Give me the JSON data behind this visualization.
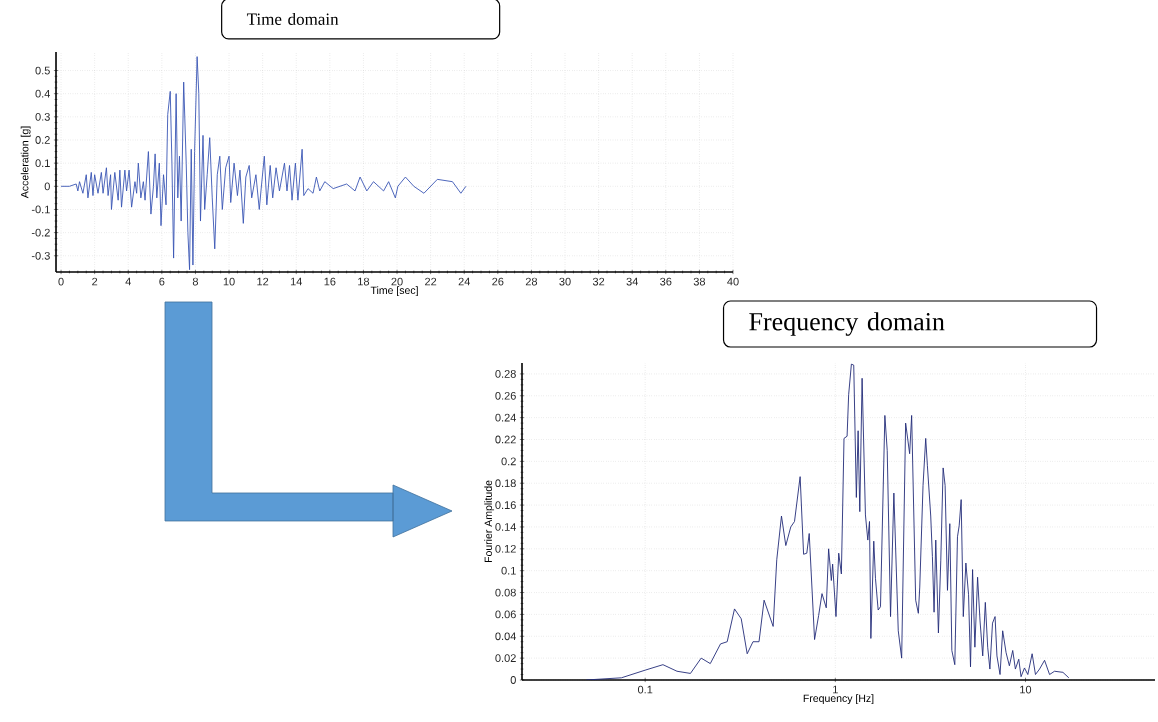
{
  "chart_data": [
    {
      "type": "line",
      "title": "Time domain",
      "xlabel": "Time [sec]",
      "ylabel": "Acceleration [g]",
      "xlim": [
        -0.3,
        40
      ],
      "ylim": [
        -0.37,
        0.58
      ],
      "xticks": [
        0,
        2,
        4,
        6,
        8,
        10,
        12,
        14,
        16,
        18,
        20,
        22,
        24,
        26,
        28,
        30,
        32,
        34,
        36,
        38,
        40
      ],
      "yticks": [
        -0.3,
        -0.2,
        -0.1,
        0,
        0.1,
        0.2,
        0.3,
        0.4,
        0.5
      ],
      "grid": true,
      "x": [
        0,
        0.5,
        0.9,
        1.0,
        1.1,
        1.3,
        1.5,
        1.6,
        1.8,
        1.9,
        2.0,
        2.2,
        2.4,
        2.5,
        2.7,
        2.8,
        2.95,
        3.0,
        3.2,
        3.4,
        3.5,
        3.6,
        3.8,
        3.9,
        4.05,
        4.2,
        4.4,
        4.5,
        4.6,
        4.75,
        4.9,
        5.0,
        5.2,
        5.35,
        5.5,
        5.6,
        5.7,
        5.85,
        5.95,
        6.1,
        6.25,
        6.35,
        6.5,
        6.6,
        6.7,
        6.85,
        6.95,
        7.05,
        7.15,
        7.3,
        7.45,
        7.55,
        7.65,
        7.75,
        7.85,
        7.95,
        8.1,
        8.2,
        8.3,
        8.45,
        8.55,
        8.7,
        8.85,
        9.0,
        9.15,
        9.3,
        9.45,
        9.6,
        9.8,
        10.0,
        10.1,
        10.3,
        10.5,
        10.65,
        10.85,
        11.0,
        11.2,
        11.35,
        11.6,
        11.8,
        11.9,
        12.1,
        12.25,
        12.45,
        12.6,
        12.8,
        13.0,
        13.3,
        13.45,
        13.6,
        13.75,
        13.95,
        14.1,
        14.35,
        14.45,
        14.7,
        15.0,
        15.2,
        15.4,
        15.7,
        16.2,
        17.0,
        17.5,
        17.8,
        18.2,
        18.6,
        19.2,
        19.5,
        19.9,
        20.05,
        20.5,
        21.0,
        21.6,
        22.4,
        23.3,
        23.8,
        24.1
      ],
      "series": [
        {
          "color": "#3a56b4",
          "values": [
            0,
            0,
            0.01,
            -0.02,
            0.02,
            -0.03,
            0.05,
            -0.05,
            0.06,
            -0.04,
            0.05,
            -0.03,
            0.06,
            -0.03,
            0.08,
            -0.04,
            0.05,
            -0.1,
            0.06,
            -0.06,
            0.07,
            -0.09,
            0.07,
            -0.02,
            0.07,
            -0.09,
            0.02,
            -0.03,
            0.1,
            -0.05,
            0.02,
            -0.06,
            0.15,
            -0.12,
            0.0,
            0.14,
            -0.05,
            0.1,
            -0.17,
            0.05,
            -0.08,
            0.31,
            0.41,
            0.1,
            -0.31,
            0.4,
            -0.05,
            0.13,
            -0.15,
            0.45,
            0.1,
            -0.2,
            -0.36,
            0.16,
            -0.34,
            0.15,
            0.56,
            0.4,
            -0.15,
            0.22,
            -0.1,
            0.05,
            0.21,
            -0.05,
            -0.27,
            0.05,
            0.13,
            -0.1,
            0.08,
            0.13,
            -0.07,
            0.1,
            -0.04,
            0.07,
            -0.16,
            0.04,
            0.09,
            -0.05,
            0.05,
            -0.1,
            -0.02,
            0.13,
            -0.08,
            0.09,
            -0.05,
            0.08,
            -0.02,
            0.1,
            -0.02,
            0.09,
            -0.06,
            0.1,
            -0.06,
            0.16,
            -0.04,
            -0.01,
            -0.03,
            0.04,
            -0.02,
            0.02,
            -0.01,
            0.01,
            -0.02,
            0.04,
            -0.02,
            0.02,
            -0.02,
            0.02,
            -0.05,
            0.0,
            0.04,
            0.0,
            -0.03,
            0.03,
            0.02,
            -0.03,
            0.0
          ]
        }
      ]
    },
    {
      "type": "line",
      "title": "Frequency domain",
      "xlabel": "Frequency [Hz]",
      "ylabel": "Fourier Amplitude",
      "log": "x",
      "xlim": [
        0.0225,
        48
      ],
      "ylim": [
        0,
        0.29
      ],
      "xticks": [
        0.1,
        1,
        10
      ],
      "yticks": [
        0,
        0.02,
        0.04,
        0.06,
        0.08,
        0.1,
        0.12,
        0.14,
        0.16,
        0.18,
        0.2,
        0.22,
        0.24,
        0.26,
        0.28
      ],
      "grid": true,
      "x": [
        0.049,
        0.075,
        0.1,
        0.124,
        0.147,
        0.173,
        0.197,
        0.22,
        0.249,
        0.27,
        0.295,
        0.32,
        0.344,
        0.369,
        0.397,
        0.422,
        0.471,
        0.492,
        0.521,
        0.549,
        0.583,
        0.61,
        0.653,
        0.681,
        0.708,
        0.729,
        0.778,
        0.817,
        0.851,
        0.896,
        0.922,
        0.953,
        0.968,
        1.008,
        1.042,
        1.076,
        1.111,
        1.153,
        1.175,
        1.215,
        1.25,
        1.29,
        1.318,
        1.345,
        1.383,
        1.44,
        1.482,
        1.513,
        1.538,
        1.593,
        1.626,
        1.68,
        1.728,
        1.822,
        1.875,
        1.952,
        2.032,
        2.143,
        2.233,
        2.343,
        2.46,
        2.52,
        2.646,
        2.733,
        2.78,
        2.893,
        2.988,
        3.05,
        3.175,
        3.24,
        3.306,
        3.375,
        3.485,
        3.586,
        3.69,
        3.78,
        3.89,
        4.0,
        4.1,
        4.25,
        4.39,
        4.48,
        4.59,
        4.71,
        4.86,
        5.02,
        5.14,
        5.27,
        5.42,
        5.6,
        5.77,
        5.96,
        6.15,
        6.33,
        6.5,
        6.71,
        6.92,
        7.08,
        7.35,
        7.59,
        7.91,
        8.23,
        8.57,
        8.85,
        9.22,
        9.48,
        9.88,
        10.29,
        10.84,
        11.29,
        11.86,
        12.6,
        13.39,
        14.22,
        15.74,
        16.9
      ],
      "series": [
        {
          "color": "#232b78",
          "values": [
            0,
            0.002,
            0.009,
            0.014,
            0.008,
            0.006,
            0.02,
            0.015,
            0.033,
            0.035,
            0.065,
            0.056,
            0.024,
            0.035,
            0.035,
            0.073,
            0.049,
            0.11,
            0.15,
            0.123,
            0.14,
            0.145,
            0.186,
            0.115,
            0.116,
            0.134,
            0.037,
            0.059,
            0.079,
            0.066,
            0.12,
            0.091,
            0.106,
            0.058,
            0.116,
            0.097,
            0.221,
            0.223,
            0.261,
            0.289,
            0.288,
            0.167,
            0.228,
            0.154,
            0.276,
            0.151,
            0.128,
            0.145,
            0.038,
            0.127,
            0.093,
            0.064,
            0.067,
            0.242,
            0.21,
            0.058,
            0.171,
            0.045,
            0.02,
            0.235,
            0.207,
            0.242,
            0.073,
            0.061,
            0.085,
            0.178,
            0.221,
            0.196,
            0.15,
            0.113,
            0.062,
            0.128,
            0.043,
            0.109,
            0.194,
            0.178,
            0.082,
            0.143,
            0.027,
            0.014,
            0.131,
            0.141,
            0.165,
            0.058,
            0.107,
            0.078,
            0.012,
            0.101,
            0.03,
            0.094,
            0.054,
            0.022,
            0.071,
            0.03,
            0.01,
            0.052,
            0.058,
            0.022,
            0.005,
            0.045,
            0.025,
            0.013,
            0.027,
            0.01,
            0.019,
            0.003,
            0.011,
            0.005,
            0.024,
            0.005,
            0.01,
            0.018,
            0.005,
            0.008,
            0.007,
            0.002
          ]
        }
      ]
    }
  ]
}
